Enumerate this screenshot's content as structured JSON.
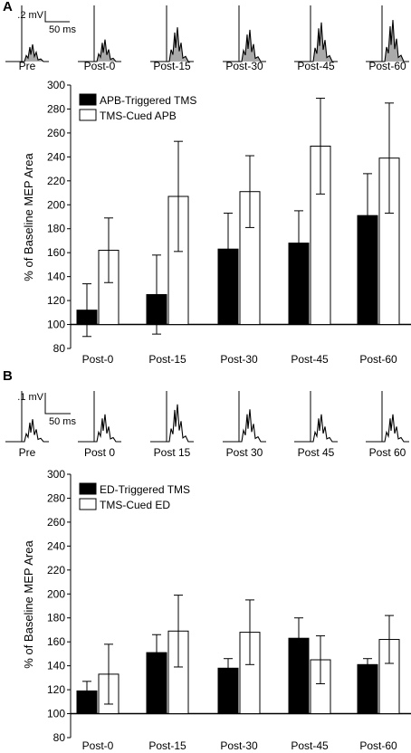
{
  "panels": [
    {
      "letter": "A",
      "scalebar": {
        "voltage": ".2 mV",
        "time": "50 ms"
      },
      "trace_labels": [
        "Pre",
        "Post-0",
        "Post-15",
        "Post-30",
        "Post-45",
        "Post-60"
      ],
      "trace_shaded": true,
      "trace_colors": {
        "line": "#000000",
        "fill": "#aaaaaa"
      }
    },
    {
      "letter": "B",
      "scalebar": {
        "voltage": ".1 mV",
        "time": "50 ms"
      },
      "trace_labels": [
        "Pre",
        "Post 0",
        "Post 15",
        "Post 30",
        "Post 45",
        "Post 60"
      ],
      "trace_shaded": false,
      "trace_colors": {
        "line": "#000000",
        "fill": "none"
      }
    }
  ],
  "chart_data": [
    {
      "type": "bar",
      "title": "",
      "xlabel": "",
      "ylabel": "% of Baseline MEP Area",
      "categories": [
        "Post-0",
        "Post-15",
        "Post-30",
        "Post-45",
        "Post-60"
      ],
      "ylim": [
        80,
        300
      ],
      "yticks": [
        80,
        100,
        120,
        140,
        160,
        180,
        200,
        220,
        240,
        260,
        280,
        300
      ],
      "baseline": 100,
      "legend_position": "top-left",
      "series": [
        {
          "name": "APB-Triggered TMS",
          "color": "#000000",
          "values": [
            112,
            125,
            163,
            168,
            191
          ],
          "errors": [
            22,
            33,
            30,
            27,
            35
          ]
        },
        {
          "name": "TMS-Cued APB",
          "color": "#ffffff",
          "values": [
            162,
            207,
            211,
            249,
            239
          ],
          "errors": [
            27,
            46,
            30,
            40,
            46
          ]
        }
      ]
    },
    {
      "type": "bar",
      "title": "",
      "xlabel": "",
      "ylabel": "% of Baseline MEP Area",
      "categories": [
        "Post-0",
        "Post-15",
        "Post-30",
        "Post-45",
        "Post-60"
      ],
      "ylim": [
        80,
        300
      ],
      "yticks": [
        80,
        100,
        120,
        140,
        160,
        180,
        200,
        220,
        240,
        260,
        280,
        300
      ],
      "baseline": 100,
      "legend_position": "top-left",
      "series": [
        {
          "name": "ED-Triggered TMS",
          "color": "#000000",
          "values": [
            119,
            151,
            138,
            163,
            141
          ],
          "errors": [
            8,
            15,
            8,
            17,
            5
          ]
        },
        {
          "name": "TMS-Cued ED",
          "color": "#ffffff",
          "values": [
            133,
            169,
            168,
            145,
            162
          ],
          "errors": [
            25,
            30,
            27,
            20,
            20
          ]
        }
      ]
    }
  ]
}
